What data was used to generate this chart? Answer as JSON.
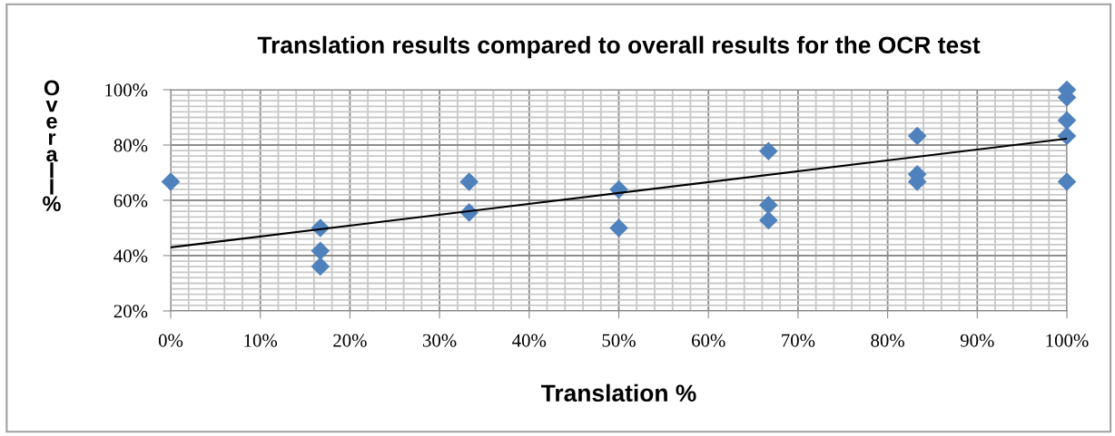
{
  "chart_data": {
    "type": "scatter",
    "title": "Translation results compared to overall results for the OCR test",
    "xlabel": "Translation %",
    "ylabel": "Overall %",
    "x": [
      0,
      16.7,
      16.7,
      16.7,
      33.3,
      33.3,
      50,
      50,
      66.7,
      66.7,
      66.7,
      83.3,
      83.3,
      83.3,
      100,
      100,
      100,
      100,
      100
    ],
    "series": [
      {
        "color": "#4f81bd",
        "marker": "diamond",
        "values": [
          66.7,
          50,
          41.7,
          36.1,
          66.7,
          55.6,
          63.9,
          50,
          77.8,
          58.3,
          52.8,
          83.3,
          69.4,
          66.7,
          100,
          97.2,
          88.9,
          83.3,
          66.7
        ]
      },
      {
        "type": "line",
        "color": "#000000",
        "x": [
          0,
          100
        ],
        "values": [
          43,
          82.3
        ]
      }
    ],
    "xlim": [
      0,
      100
    ],
    "ylim": [
      20,
      100
    ],
    "xticks": [
      {
        "value": 0,
        "label": "0%"
      },
      {
        "value": 10,
        "label": "10%"
      },
      {
        "value": 20,
        "label": "20%"
      },
      {
        "value": 30,
        "label": "30%"
      },
      {
        "value": 40,
        "label": "40%"
      },
      {
        "value": 50,
        "label": "50%"
      },
      {
        "value": 60,
        "label": "60%"
      },
      {
        "value": 70,
        "label": "70%"
      },
      {
        "value": 80,
        "label": "80%"
      },
      {
        "value": 90,
        "label": "90%"
      },
      {
        "value": 100,
        "label": "100%"
      }
    ],
    "yticks": [
      {
        "value": 20,
        "label": "20%"
      },
      {
        "value": 40,
        "label": "40%"
      },
      {
        "value": 60,
        "label": "60%"
      },
      {
        "value": 80,
        "label": "80%"
      },
      {
        "value": 100,
        "label": "100%"
      }
    ],
    "grid": true,
    "legend": false
  }
}
